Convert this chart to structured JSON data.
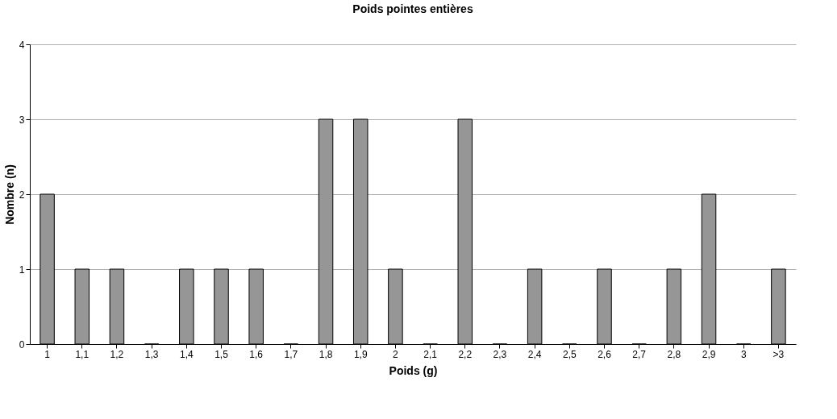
{
  "chart_data": {
    "type": "bar",
    "title": "Poids pointes entières",
    "xlabel": "Poids (g)",
    "ylabel": "Nombre (n)",
    "categories": [
      "1",
      "1,1",
      "1,2",
      "1,3",
      "1,4",
      "1,5",
      "1,6",
      "1,7",
      "1,8",
      "1,9",
      "2",
      "2,1",
      "2,2",
      "2,3",
      "2,4",
      "2,5",
      "2,6",
      "2,7",
      "2,8",
      "2,9",
      "3",
      ">3"
    ],
    "values": [
      2,
      1,
      1,
      0,
      1,
      1,
      1,
      0,
      3,
      3,
      1,
      0,
      3,
      0,
      1,
      0,
      1,
      0,
      1,
      2,
      0,
      1
    ],
    "color": "#969696",
    "ylim": [
      0,
      4
    ],
    "yticks": [
      0,
      1,
      2,
      3,
      4
    ],
    "grid": "y"
  }
}
